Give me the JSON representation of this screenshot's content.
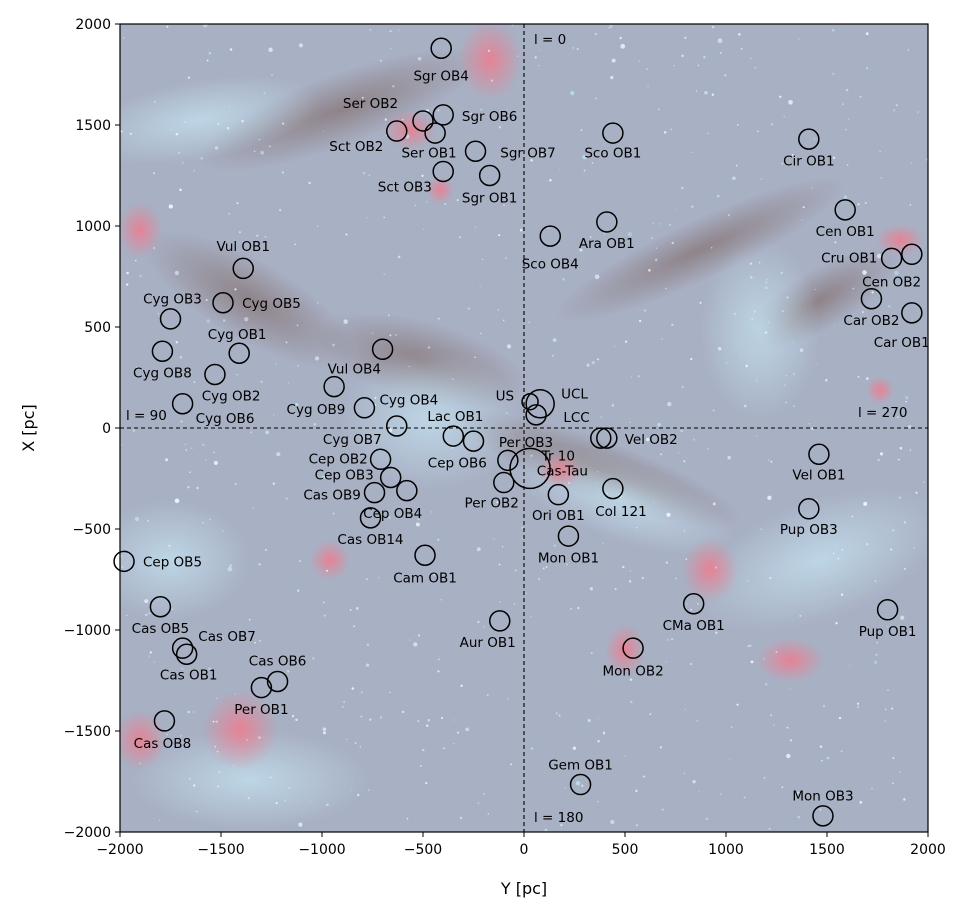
{
  "chart_data": {
    "type": "scatter",
    "xlabel": "Y [pc]",
    "ylabel": "X [pc]",
    "xlim": [
      -2000,
      2000
    ],
    "ylim": [
      -2000,
      2000
    ],
    "xticks": [
      -2000,
      -1500,
      -1000,
      -500,
      0,
      500,
      1000,
      1500,
      2000
    ],
    "yticks": [
      -2000,
      -1500,
      -1000,
      -500,
      0,
      500,
      1000,
      1500,
      2000
    ],
    "xtick_labels": [
      "−2000",
      "−1500",
      "−1000",
      "−500",
      "0",
      "500",
      "1000",
      "1500",
      "2000"
    ],
    "ytick_labels": [
      "−2000",
      "−1500",
      "−1000",
      "−500",
      "0",
      "500",
      "1000",
      "1500",
      "2000"
    ],
    "grid": false,
    "guides": {
      "l0": "l = 0",
      "l90": "l = 90",
      "l180": "l = 180",
      "l270": "l = 270"
    },
    "background": {
      "base_color": "#a8b0c4",
      "emission_color": "#e87a8a",
      "dust_color": "#8a7068",
      "star_color": "#eef4ff",
      "young_star_color": "#bfe4f2"
    },
    "associations": [
      {
        "name": "Sgr OB4",
        "y": -410,
        "x": 1880,
        "label_y": -410,
        "label_x": 1745
      },
      {
        "name": "Ser OB2",
        "y": -500,
        "x": 1520,
        "label_y": -760,
        "label_x": 1610
      },
      {
        "name": "Sgr OB6",
        "y": -400,
        "x": 1550,
        "label_y": -170,
        "label_x": 1545
      },
      {
        "name": "Sct OB2",
        "y": -630,
        "x": 1470,
        "label_y": -830,
        "label_x": 1395
      },
      {
        "name": "Ser OB1",
        "y": -440,
        "x": 1460,
        "label_y": -470,
        "label_x": 1365
      },
      {
        "name": "Sgr OB7",
        "y": -240,
        "x": 1370,
        "label_y": 20,
        "label_x": 1365
      },
      {
        "name": "Sco OB1",
        "y": 440,
        "x": 1460,
        "label_y": 440,
        "label_x": 1365
      },
      {
        "name": "Cir OB1",
        "y": 1410,
        "x": 1430,
        "label_y": 1410,
        "label_x": 1325
      },
      {
        "name": "Sct OB3",
        "y": -400,
        "x": 1270,
        "label_y": -590,
        "label_x": 1195
      },
      {
        "name": "Sgr OB1",
        "y": -170,
        "x": 1250,
        "label_y": -170,
        "label_x": 1140
      },
      {
        "name": "Cen OB1",
        "y": 1590,
        "x": 1080,
        "label_y": 1590,
        "label_x": 975
      },
      {
        "name": "Ara OB1",
        "y": 410,
        "x": 1020,
        "label_y": 410,
        "label_x": 915
      },
      {
        "name": "Sco OB4",
        "y": 130,
        "x": 950,
        "label_y": 130,
        "label_x": 815
      },
      {
        "name": "Cru OB1",
        "y": 1820,
        "x": 840,
        "label_y": 1610,
        "label_x": 845
      },
      {
        "name": "Cen OB2",
        "y": 1920,
        "x": 860,
        "label_y": 1820,
        "label_x": 725
      },
      {
        "name": "Vul OB1",
        "y": -1390,
        "x": 790,
        "label_y": -1390,
        "label_x": 900
      },
      {
        "name": "Cyg OB3",
        "y": -1750,
        "x": 540,
        "label_y": -1740,
        "label_x": 640
      },
      {
        "name": "Cyg OB5",
        "y": -1490,
        "x": 620,
        "label_y": -1250,
        "label_x": 620
      },
      {
        "name": "Car OB2",
        "y": 1720,
        "x": 640,
        "label_y": 1720,
        "label_x": 535
      },
      {
        "name": "Car OB1",
        "y": 1920,
        "x": 570,
        "label_y": 1870,
        "label_x": 425
      },
      {
        "name": "Cyg OB1",
        "y": -1410,
        "x": 370,
        "label_y": -1420,
        "label_x": 465
      },
      {
        "name": "Vul OB4",
        "y": -700,
        "x": 390,
        "label_y": -840,
        "label_x": 295
      },
      {
        "name": "Cyg OB8",
        "y": -1790,
        "x": 380,
        "label_y": -1790,
        "label_x": 275
      },
      {
        "name": "Cyg OB2",
        "y": -1530,
        "x": 265,
        "label_y": -1450,
        "label_x": 160
      },
      {
        "name": "Cyg OB9",
        "y": -940,
        "x": 205,
        "label_y": -1030,
        "label_x": 95
      },
      {
        "name": "Cyg OB4",
        "y": -790,
        "x": 100,
        "label_y": -570,
        "label_x": 140
      },
      {
        "name": "US",
        "y": 30,
        "x": 130,
        "label_y": -95,
        "label_x": 160
      },
      {
        "name": "UCL",
        "y": 80,
        "x": 120,
        "label_y": 250,
        "label_x": 170
      },
      {
        "name": "LCC",
        "y": 60,
        "x": 65,
        "label_y": 260,
        "label_x": 55
      },
      {
        "name": "Cyg OB6",
        "y": -1690,
        "x": 120,
        "label_y": -1480,
        "label_x": 50
      },
      {
        "name": "Lac OB1",
        "y": -630,
        "x": 10,
        "label_y": -340,
        "label_x": 60
      },
      {
        "name": "Cyg OB7",
        "y": -350,
        "x": -40,
        "label_y": -850,
        "label_x": -55
      },
      {
        "name": "Per OB3",
        "y": -250,
        "x": -65,
        "label_y": 10,
        "label_x": -70
      },
      {
        "name": "Vel OB2",
        "y": 380,
        "x": -50,
        "label_y": 630,
        "label_x": -55
      },
      {
        "name": "Cep OB2",
        "y": -710,
        "x": -155,
        "label_y": -920,
        "label_x": -150
      },
      {
        "name": "Cep OB6",
        "y": -80,
        "x": -160,
        "label_y": -330,
        "label_x": -170
      },
      {
        "name": "Tr 10",
        "y": 410,
        "x": -50,
        "label_y": 170,
        "label_x": -135
      },
      {
        "name": "Cas-Tau",
        "y": 30,
        "x": -200,
        "label_y": 190,
        "label_x": -210
      },
      {
        "name": "Vel OB1",
        "y": 1460,
        "x": -130,
        "label_y": 1460,
        "label_x": -230
      },
      {
        "name": "Cep OB3",
        "y": -660,
        "x": -245,
        "label_y": -890,
        "label_x": -230
      },
      {
        "name": "Cas OB9",
        "y": -740,
        "x": -320,
        "label_y": -950,
        "label_x": -330
      },
      {
        "name": "Cep OB4",
        "y": -580,
        "x": -310,
        "label_y": -650,
        "label_x": -420
      },
      {
        "name": "Per OB2",
        "y": -100,
        "x": -270,
        "label_y": -160,
        "label_x": -370
      },
      {
        "name": "Ori OB1",
        "y": 170,
        "x": -330,
        "label_y": 170,
        "label_x": -430
      },
      {
        "name": "Col 121",
        "y": 440,
        "x": -300,
        "label_y": 480,
        "label_x": -410
      },
      {
        "name": "Pup OB3",
        "y": 1410,
        "x": -400,
        "label_y": 1410,
        "label_x": -500
      },
      {
        "name": "Cas OB14",
        "y": -760,
        "x": -445,
        "label_y": -760,
        "label_x": -550
      },
      {
        "name": "Mon OB1",
        "y": 220,
        "x": -535,
        "label_y": 220,
        "label_x": -640
      },
      {
        "name": "Cep OB5",
        "y": -1980,
        "x": -660,
        "label_y": -1740,
        "label_x": -660
      },
      {
        "name": "Cam OB1",
        "y": -490,
        "x": -630,
        "label_y": -490,
        "label_x": -740
      },
      {
        "name": "Cas OB5",
        "y": -1800,
        "x": -885,
        "label_y": -1800,
        "label_x": -990
      },
      {
        "name": "Aur OB1",
        "y": -120,
        "x": -955,
        "label_y": -180,
        "label_x": -1060
      },
      {
        "name": "CMa OB1",
        "y": 840,
        "x": -870,
        "label_y": 840,
        "label_x": -975
      },
      {
        "name": "Pup OB1",
        "y": 1800,
        "x": -900,
        "label_y": 1800,
        "label_x": -1005
      },
      {
        "name": "Cas OB7",
        "y": -1690,
        "x": -1090,
        "label_y": -1470,
        "label_x": -1030
      },
      {
        "name": "Cas OB1",
        "y": -1670,
        "x": -1120,
        "label_y": -1660,
        "label_x": -1220
      },
      {
        "name": "Mon OB2",
        "y": 540,
        "x": -1090,
        "label_y": 540,
        "label_x": -1200
      },
      {
        "name": "Cas OB6",
        "y": -1220,
        "x": -1255,
        "label_y": -1220,
        "label_x": -1150
      },
      {
        "name": "Per OB1",
        "y": -1300,
        "x": -1285,
        "label_y": -1300,
        "label_x": -1390
      },
      {
        "name": "Cas OB8",
        "y": -1780,
        "x": -1450,
        "label_y": -1790,
        "label_x": -1560
      },
      {
        "name": "Gem OB1",
        "y": 280,
        "x": -1765,
        "label_y": 280,
        "label_x": -1665
      },
      {
        "name": "Mon OB3",
        "y": 1480,
        "x": -1920,
        "label_y": 1480,
        "label_x": -1820
      }
    ]
  }
}
